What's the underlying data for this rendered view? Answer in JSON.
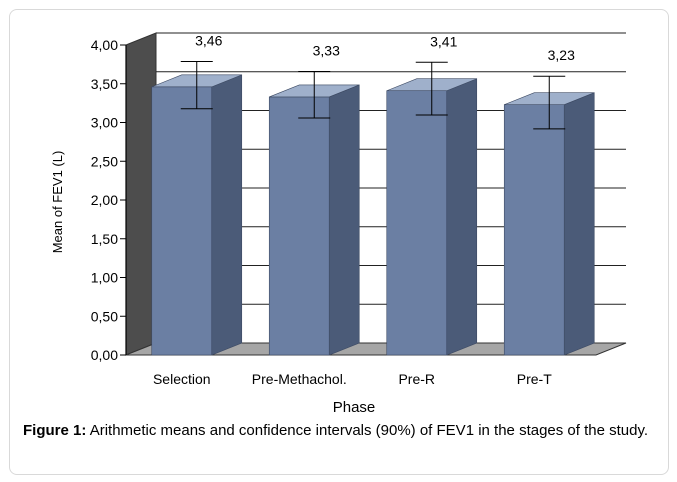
{
  "figure": {
    "caption_label": "Figure 1:",
    "caption_text": "Arithmetic means and confidence intervals (90%) of FEV1 in the stages of the study."
  },
  "chart_data": {
    "type": "bar",
    "categories": [
      "Selection",
      "Pre-Methachol.",
      "Pre-R",
      "Pre-T"
    ],
    "values": [
      3.46,
      3.33,
      3.41,
      3.23
    ],
    "value_labels": [
      "3,46",
      "3,33",
      "3,41",
      "3,23"
    ],
    "ci_low": [
      3.1,
      2.98,
      3.02,
      2.84
    ],
    "ci_high": [
      3.71,
      3.58,
      3.7,
      3.52
    ],
    "xlabel": "Phase",
    "ylabel": "Mean of FEV1 (L)",
    "ylim": [
      0,
      4
    ],
    "yticks": [
      0,
      0.5,
      1.0,
      1.5,
      2.0,
      2.5,
      3.0,
      3.5,
      4.0
    ],
    "ytick_labels": [
      "0,00",
      "0,50",
      "1,00",
      "1,50",
      "2,00",
      "2,50",
      "3,00",
      "3,50",
      "4,00"
    ],
    "grid": true,
    "style": "3d",
    "colors": {
      "bar_front": "#6b7fa3",
      "bar_side": "#4b5b78",
      "bar_top": "#9fb0cb",
      "wall": "#4d4d4d",
      "floor": "#a6a6a6"
    }
  }
}
